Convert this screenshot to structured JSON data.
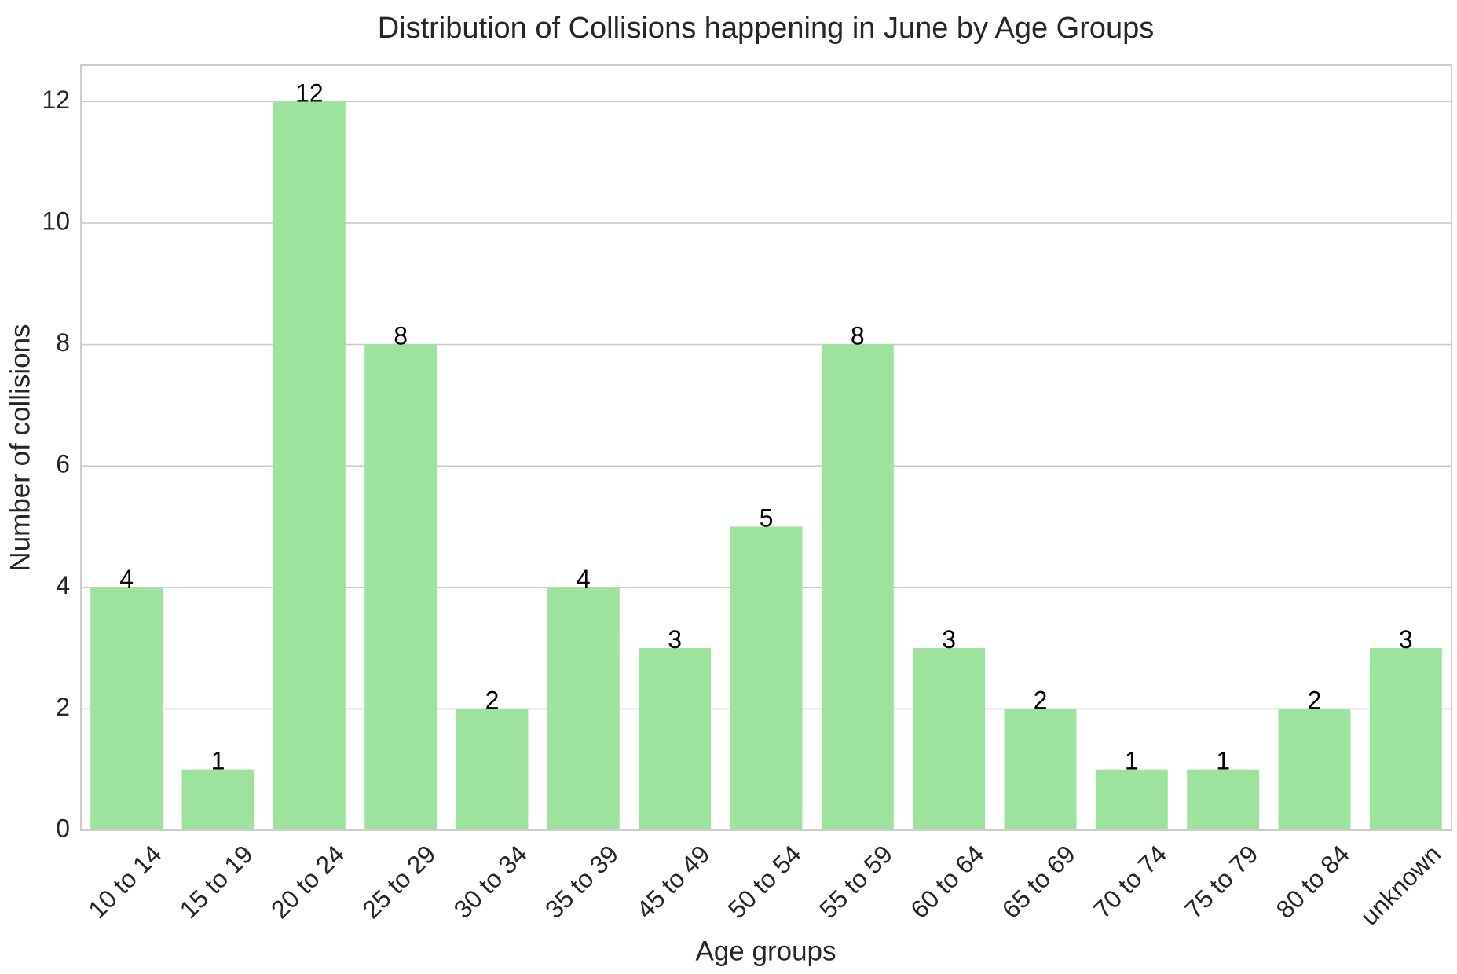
{
  "chart_data": {
    "type": "bar",
    "title": "Distribution of Collisions happening in June by Age Groups",
    "xlabel": "Age groups",
    "ylabel": "Number of collisions",
    "categories": [
      "10 to 14",
      "15 to 19",
      "20 to 24",
      "25 to 29",
      "30 to 34",
      "35 to 39",
      "45 to 49",
      "50 to 54",
      "55 to 59",
      "60 to 64",
      "65 to 69",
      "70 to 74",
      "75 to 79",
      "80 to 84",
      "unknown"
    ],
    "values": [
      4,
      1,
      12,
      8,
      2,
      4,
      3,
      5,
      8,
      3,
      2,
      1,
      1,
      2,
      3
    ],
    "ylim": [
      0,
      12.6
    ],
    "yticks": [
      0,
      2,
      4,
      6,
      8,
      10,
      12
    ],
    "grid": "horizontal",
    "bar_color": "#9de29d",
    "data_labels": true,
    "legend": "none"
  }
}
